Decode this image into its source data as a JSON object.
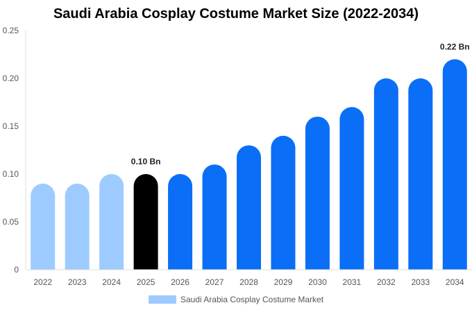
{
  "chart_data": {
    "type": "bar",
    "title": "Saudi Arabia Cosplay Costume Market Size (2022-2034)",
    "xlabel": "",
    "ylabel": "",
    "categories": [
      "2022",
      "2023",
      "2024",
      "2025",
      "2026",
      "2027",
      "2028",
      "2029",
      "2030",
      "2031",
      "2032",
      "2033",
      "2034"
    ],
    "series": [
      {
        "name": "Saudi Arabia Cosplay Costume Market",
        "values": [
          0.09,
          0.09,
          0.1,
          0.1,
          0.1,
          0.11,
          0.13,
          0.14,
          0.16,
          0.17,
          0.2,
          0.2,
          0.22
        ]
      }
    ],
    "ylim": [
      0,
      0.25
    ],
    "yticks": [
      "0",
      "0.05",
      "0.10",
      "0.15",
      "0.20",
      "0.25"
    ],
    "data_labels": [
      {
        "category": "2025",
        "text": "0.10 Bn"
      },
      {
        "category": "2034",
        "text": "0.22 Bn"
      }
    ],
    "bar_colors": {
      "historical": "#9ECBFF",
      "base_year": "#000000",
      "forecast": "#0A6EF7"
    },
    "historical_categories": [
      "2022",
      "2023",
      "2024"
    ],
    "base_year_category": "2025",
    "grid": false,
    "legend_position": "bottom"
  }
}
